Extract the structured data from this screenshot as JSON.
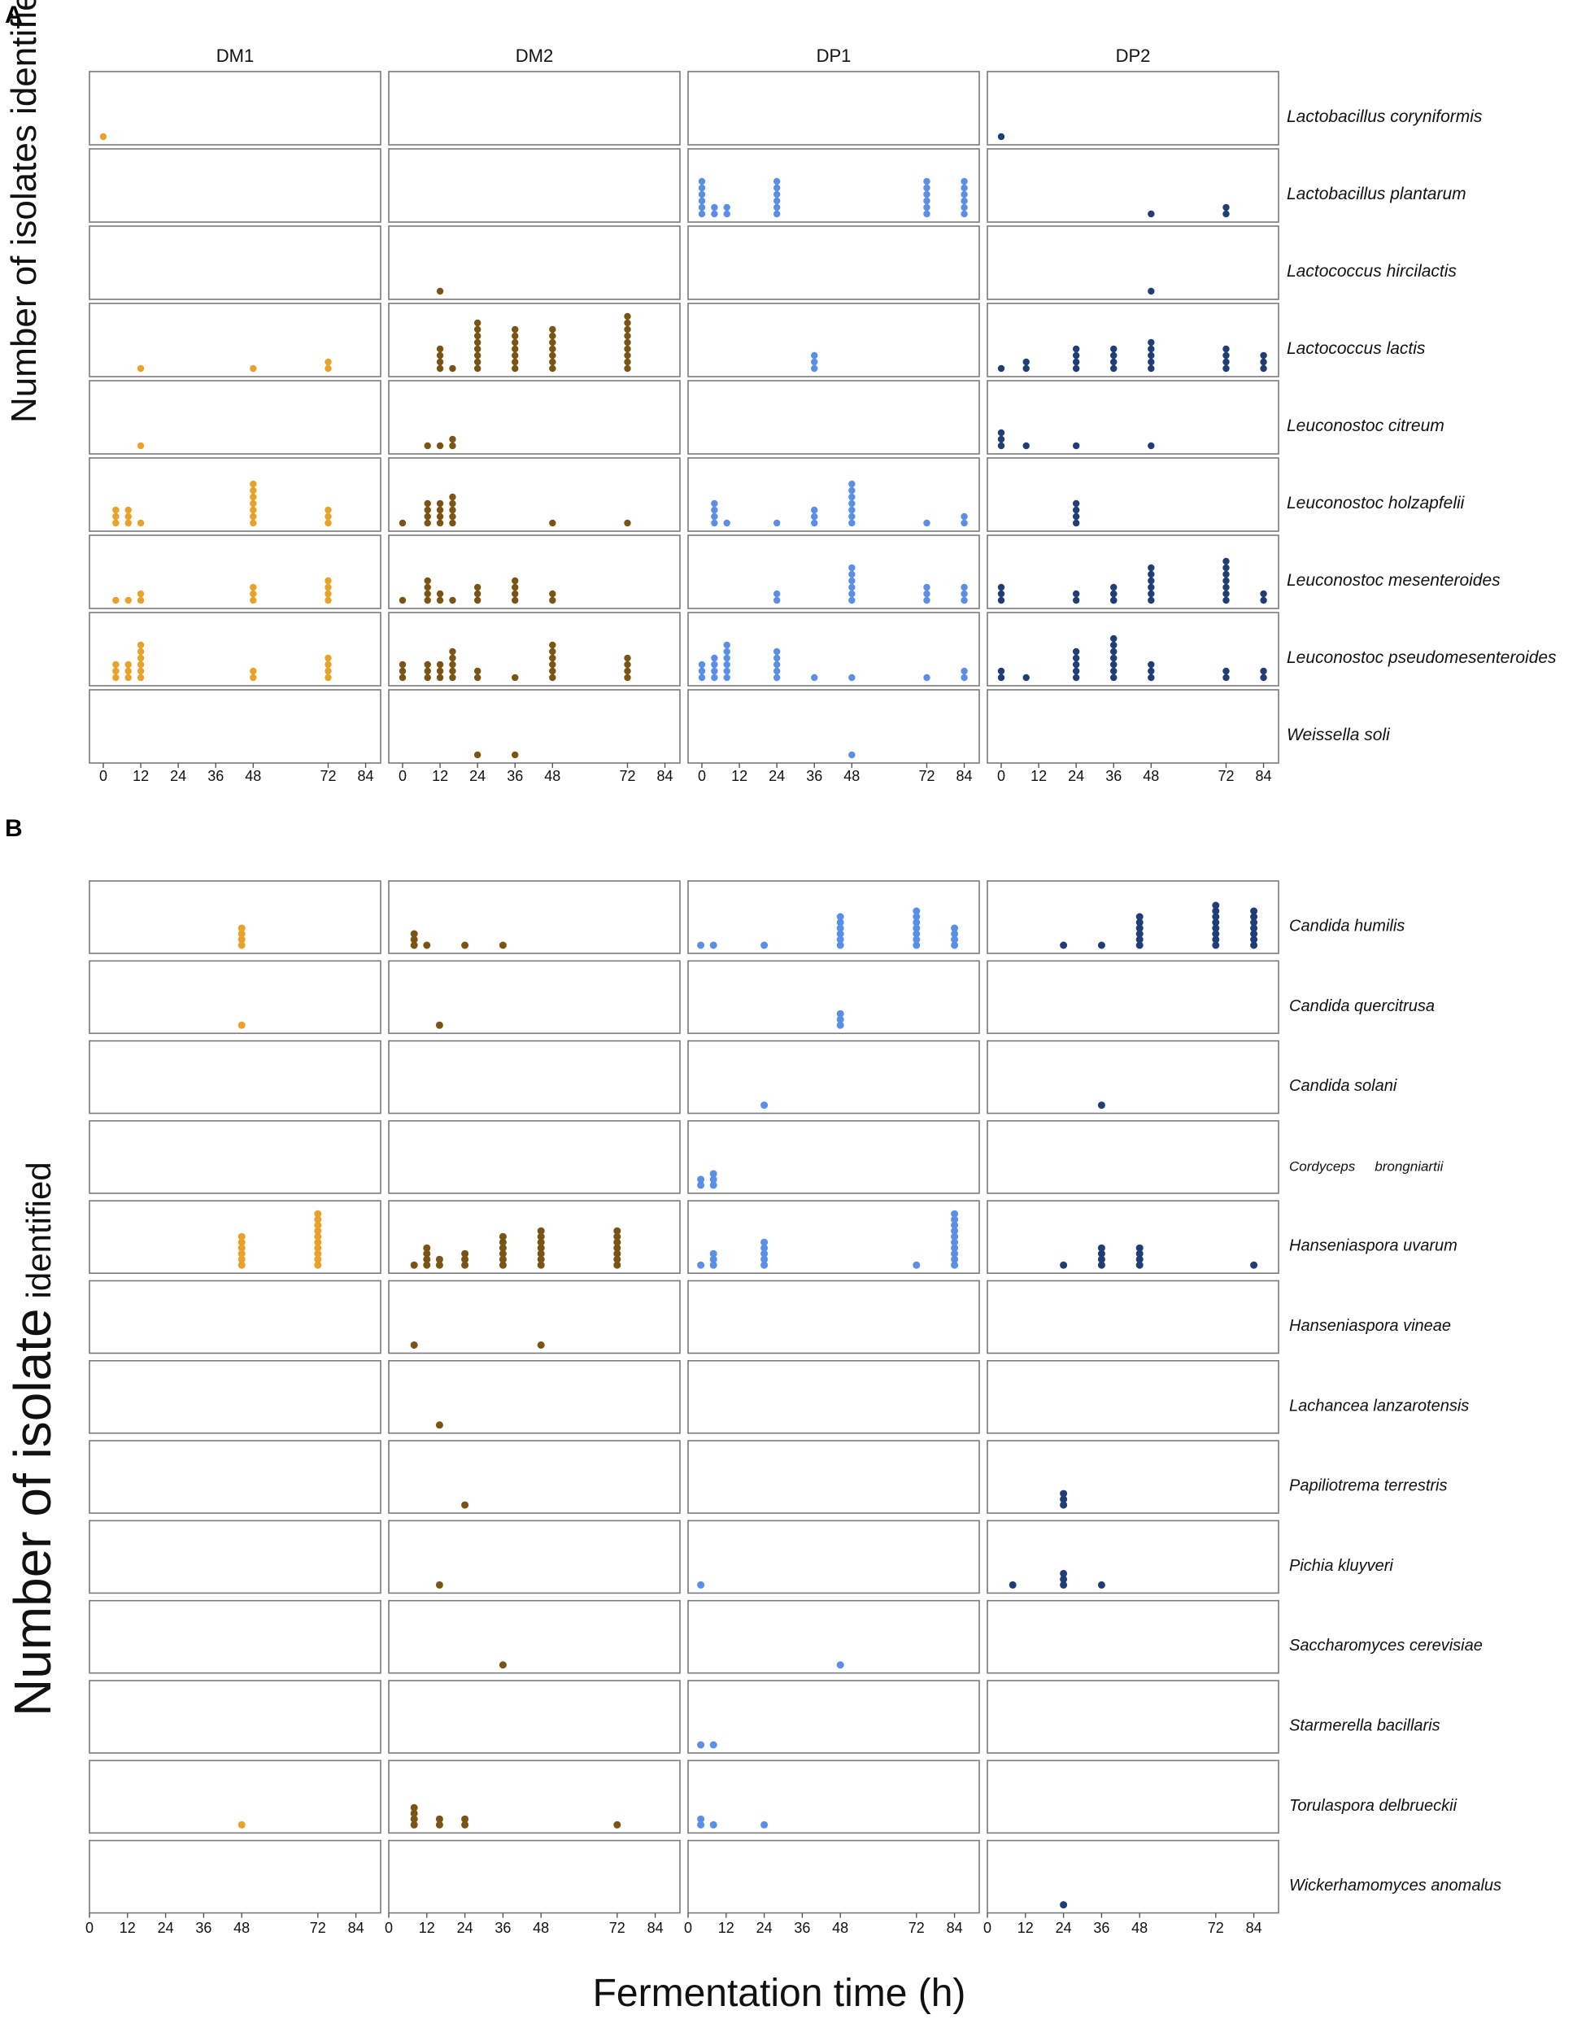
{
  "figure": {
    "panel_a_label": "A",
    "panel_b_label": "B",
    "x_label": "Fermentation time (h)",
    "y_label_a": "Number of isolates identified",
    "y_label_b_part1": "Number of isolate",
    "y_label_b_part2": "identified",
    "colors": {
      "DM1": "#e8a229",
      "DM2": "#7a5414",
      "DP1": "#5b8fe6",
      "DP2": "#213d75"
    }
  },
  "chart_data": [
    {
      "type": "scatter",
      "title": "A",
      "xlabel": "Fermentation time (h)",
      "ylabel": "Number of isolates identified",
      "columns": [
        "DM1",
        "DM2",
        "DP1",
        "DP2"
      ],
      "xticks": [
        "0",
        "12",
        "24",
        "36",
        "48",
        "72",
        "84"
      ],
      "xtick_values": [
        0,
        12,
        24,
        36,
        48,
        72,
        84
      ],
      "xlim": [
        -4,
        88
      ],
      "ylim": [
        0,
        9.5
      ],
      "rows": [
        {
          "species": "Lactobacillus coryniformis",
          "DM1": [
            [
              0,
              1
            ]
          ],
          "DM2": [],
          "DP1": [],
          "DP2": [
            [
              0,
              1
            ]
          ]
        },
        {
          "species": "Lactobacillus plantarum",
          "DM1": [],
          "DM2": [],
          "DP1": [
            [
              0,
              6
            ],
            [
              4,
              2
            ],
            [
              8,
              2
            ],
            [
              24,
              6
            ],
            [
              72,
              6
            ],
            [
              84,
              6
            ]
          ],
          "DP2": [
            [
              48,
              1
            ],
            [
              72,
              2
            ]
          ]
        },
        {
          "species": "Lactococcus hircilactis",
          "DM1": [],
          "DM2": [
            [
              12,
              1
            ]
          ],
          "DP1": [],
          "DP2": [
            [
              48,
              1
            ]
          ]
        },
        {
          "species": "Lactococcus lactis",
          "DM1": [
            [
              12,
              1
            ],
            [
              48,
              1
            ],
            [
              72,
              2
            ]
          ],
          "DM2": [
            [
              12,
              4
            ],
            [
              16,
              1
            ],
            [
              24,
              8
            ],
            [
              36,
              7
            ],
            [
              48,
              7
            ],
            [
              72,
              9
            ]
          ],
          "DP1": [
            [
              36,
              3
            ]
          ],
          "DP2": [
            [
              0,
              1
            ],
            [
              8,
              2
            ],
            [
              24,
              4
            ],
            [
              36,
              4
            ],
            [
              48,
              5
            ],
            [
              72,
              4
            ],
            [
              84,
              3
            ]
          ]
        },
        {
          "species": "Leuconostoc citreum",
          "DM1": [
            [
              12,
              1
            ]
          ],
          "DM2": [
            [
              8,
              1
            ],
            [
              12,
              1
            ],
            [
              16,
              2
            ]
          ],
          "DP1": [],
          "DP2": [
            [
              0,
              3
            ],
            [
              8,
              1
            ],
            [
              24,
              1
            ],
            [
              48,
              1
            ]
          ]
        },
        {
          "species": "Leuconostoc holzapfelii",
          "DM1": [
            [
              4,
              3
            ],
            [
              8,
              3
            ],
            [
              12,
              1
            ],
            [
              48,
              7
            ],
            [
              72,
              3
            ]
          ],
          "DM2": [
            [
              0,
              1
            ],
            [
              8,
              4
            ],
            [
              12,
              4
            ],
            [
              16,
              5
            ],
            [
              48,
              1
            ],
            [
              72,
              1
            ]
          ],
          "DP1": [
            [
              4,
              4
            ],
            [
              8,
              1
            ],
            [
              24,
              1
            ],
            [
              36,
              3
            ],
            [
              48,
              7
            ],
            [
              72,
              1
            ],
            [
              84,
              2
            ]
          ],
          "DP2": [
            [
              24,
              4
            ]
          ]
        },
        {
          "species": "Leuconostoc mesenteroides",
          "DM1": [
            [
              4,
              1
            ],
            [
              8,
              1
            ],
            [
              12,
              2
            ],
            [
              48,
              3
            ],
            [
              72,
              4
            ]
          ],
          "DM2": [
            [
              0,
              1
            ],
            [
              8,
              4
            ],
            [
              12,
              2
            ],
            [
              16,
              1
            ],
            [
              24,
              3
            ],
            [
              36,
              4
            ],
            [
              48,
              2
            ]
          ],
          "DP1": [
            [
              24,
              2
            ],
            [
              48,
              6
            ],
            [
              72,
              3
            ],
            [
              84,
              3
            ]
          ],
          "DP2": [
            [
              0,
              3
            ],
            [
              24,
              2
            ],
            [
              36,
              2
            ],
            [
              36,
              3
            ],
            [
              48,
              6
            ],
            [
              72,
              7
            ],
            [
              84,
              2
            ]
          ]
        },
        {
          "species": "Leuconostoc pseudomesenteroides",
          "DM1": [
            [
              4,
              3
            ],
            [
              8,
              3
            ],
            [
              12,
              6
            ],
            [
              48,
              2
            ],
            [
              72,
              4
            ]
          ],
          "DM2": [
            [
              0,
              3
            ],
            [
              8,
              3
            ],
            [
              12,
              3
            ],
            [
              16,
              5
            ],
            [
              24,
              2
            ],
            [
              36,
              1
            ],
            [
              48,
              6
            ],
            [
              72,
              4
            ]
          ],
          "DP1": [
            [
              0,
              3
            ],
            [
              4,
              4
            ],
            [
              8,
              6
            ],
            [
              24,
              5
            ],
            [
              36,
              1
            ],
            [
              48,
              1
            ],
            [
              72,
              1
            ],
            [
              84,
              2
            ]
          ],
          "DP2": [
            [
              0,
              2
            ],
            [
              8,
              1
            ],
            [
              24,
              5
            ],
            [
              36,
              7
            ],
            [
              48,
              3
            ],
            [
              72,
              2
            ],
            [
              84,
              2
            ]
          ]
        },
        {
          "species": "Weissella soli",
          "DM1": [],
          "DM2": [
            [
              24,
              1
            ],
            [
              36,
              1
            ]
          ],
          "DP1": [
            [
              48,
              1
            ]
          ],
          "DP2": []
        }
      ]
    },
    {
      "type": "scatter",
      "title": "B",
      "xlabel": "Fermentation time (h)",
      "ylabel": "Number of isolate identified",
      "columns": [
        "DM1",
        "DM2",
        "DP1",
        "DP2"
      ],
      "xticks": [
        "0",
        "12",
        "24",
        "36",
        "48",
        "72",
        "84"
      ],
      "xtick_values": [
        0,
        12,
        24,
        36,
        48,
        72,
        84
      ],
      "xlim": [
        0,
        88
      ],
      "ylim": [
        0,
        10
      ],
      "rows": [
        {
          "species": "Candida humilis",
          "DM1": [
            [
              48,
              4
            ]
          ],
          "DM2": [
            [
              8,
              3
            ],
            [
              12,
              1
            ],
            [
              24,
              1
            ],
            [
              36,
              1
            ]
          ],
          "DP1": [
            [
              4,
              1
            ],
            [
              8,
              1
            ],
            [
              24,
              1
            ],
            [
              48,
              6
            ],
            [
              72,
              7
            ],
            [
              84,
              4
            ]
          ],
          "DP2": [
            [
              24,
              1
            ],
            [
              36,
              1
            ],
            [
              48,
              6
            ],
            [
              72,
              8
            ],
            [
              84,
              7
            ]
          ]
        },
        {
          "species": "Candida quercitrusa",
          "DM1": [
            [
              48,
              1
            ]
          ],
          "DM2": [
            [
              16,
              1
            ]
          ],
          "DP1": [
            [
              48,
              3
            ]
          ],
          "DP2": []
        },
        {
          "species": "Candida solani",
          "DM1": [],
          "DM2": [],
          "DP1": [
            [
              24,
              1
            ]
          ],
          "DP2": [
            [
              36,
              1
            ]
          ]
        },
        {
          "species": "Cordyceps brongniartii",
          "species_part1": "Cordyceps",
          "species_part2": "brongniartii",
          "DM1": [],
          "DM2": [],
          "DP1": [
            [
              4,
              2
            ],
            [
              8,
              3
            ]
          ],
          "DP2": []
        },
        {
          "species": "Hanseniaspora uvarum",
          "DM1": [
            [
              48,
              6
            ],
            [
              72,
              10
            ]
          ],
          "DM2": [
            [
              8,
              1
            ],
            [
              12,
              4
            ],
            [
              16,
              2
            ],
            [
              24,
              3
            ],
            [
              36,
              6
            ],
            [
              48,
              7
            ],
            [
              72,
              7
            ]
          ],
          "DP1": [
            [
              4,
              1
            ],
            [
              8,
              3
            ],
            [
              24,
              5
            ],
            [
              72,
              1
            ],
            [
              84,
              10
            ]
          ],
          "DP2": [
            [
              24,
              1
            ],
            [
              36,
              4
            ],
            [
              48,
              4
            ],
            [
              84,
              1
            ]
          ]
        },
        {
          "species": "Hanseniaspora vineae",
          "DM1": [],
          "DM2": [
            [
              8,
              1
            ],
            [
              48,
              1
            ]
          ],
          "DP1": [],
          "DP2": []
        },
        {
          "species": "Lachancea lanzarotensis",
          "DM1": [],
          "DM2": [
            [
              16,
              1
            ]
          ],
          "DP1": [],
          "DP2": []
        },
        {
          "species": "Papiliotrema terrestris",
          "DM1": [],
          "DM2": [
            [
              24,
              1
            ]
          ],
          "DP1": [],
          "DP2": [
            [
              24,
              3
            ]
          ]
        },
        {
          "species": "Pichia kluyveri",
          "DM1": [],
          "DM2": [
            [
              16,
              1
            ]
          ],
          "DP1": [
            [
              4,
              1
            ]
          ],
          "DP2": [
            [
              8,
              1
            ],
            [
              24,
              3
            ],
            [
              36,
              1
            ]
          ]
        },
        {
          "species": "Saccharomyces cerevisiae",
          "DM1": [],
          "DM2": [
            [
              36,
              1
            ]
          ],
          "DP1": [
            [
              48,
              1
            ]
          ],
          "DP2": []
        },
        {
          "species": "Starmerella bacillaris",
          "DM1": [],
          "DM2": [],
          "DP1": [
            [
              4,
              1
            ],
            [
              8,
              1
            ]
          ],
          "DP2": []
        },
        {
          "species": "Torulaspora delbrueckii",
          "DM1": [
            [
              48,
              1
            ]
          ],
          "DM2": [
            [
              8,
              4
            ],
            [
              16,
              2
            ],
            [
              24,
              2
            ],
            [
              72,
              1
            ]
          ],
          "DP1": [
            [
              4,
              2
            ],
            [
              8,
              1
            ],
            [
              24,
              1
            ]
          ],
          "DP2": []
        },
        {
          "species": "Wickerhamomyces anomalus",
          "DM1": [],
          "DM2": [],
          "DP1": [],
          "DP2": [
            [
              24,
              1
            ]
          ]
        }
      ]
    }
  ]
}
